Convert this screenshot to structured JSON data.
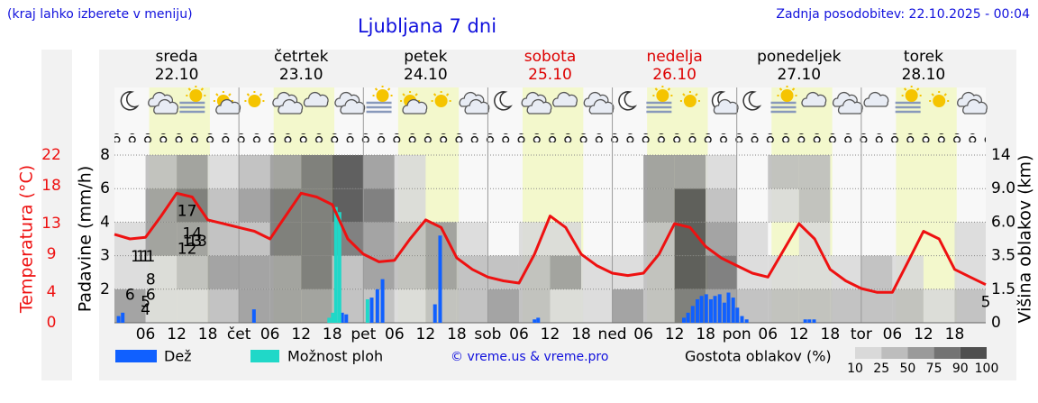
{
  "chart_data": {
    "type": "meteogram",
    "title": "Ljubljana 7 dni",
    "note": "(kraj lahko izberete v meniju)",
    "updated": "Zadnja posodobitev: 22.10.2025 - 00:04",
    "credit": "© vreme.us & vreme.pro",
    "days": [
      {
        "name": "sreda",
        "date": "22.10",
        "color": "#000000"
      },
      {
        "name": "četrtek",
        "date": "23.10",
        "color": "#000000"
      },
      {
        "name": "petek",
        "date": "24.10",
        "color": "#000000"
      },
      {
        "name": "sobota",
        "date": "25.10",
        "color": "#dd0000"
      },
      {
        "name": "nedelja",
        "date": "26.10",
        "color": "#dd0000"
      },
      {
        "name": "ponedeljek",
        "date": "27.10",
        "color": "#000000"
      },
      {
        "name": "torek",
        "date": "28.10",
        "color": "#000000"
      }
    ],
    "daylight_hours": [
      6.7,
      18.4
    ],
    "xlim": [
      0,
      168
    ],
    "xticks": [
      {
        "value": 6,
        "label": "06"
      },
      {
        "value": 12,
        "label": "12"
      },
      {
        "value": 18,
        "label": "18"
      },
      {
        "value": 24,
        "label": "čet"
      },
      {
        "value": 30,
        "label": "06"
      },
      {
        "value": 36,
        "label": "12"
      },
      {
        "value": 42,
        "label": "18"
      },
      {
        "value": 48,
        "label": "pet"
      },
      {
        "value": 54,
        "label": "06"
      },
      {
        "value": 60,
        "label": "12"
      },
      {
        "value": 66,
        "label": "18"
      },
      {
        "value": 72,
        "label": "sob"
      },
      {
        "value": 78,
        "label": "06"
      },
      {
        "value": 84,
        "label": "12"
      },
      {
        "value": 90,
        "label": "18"
      },
      {
        "value": 96,
        "label": "ned"
      },
      {
        "value": 102,
        "label": "06"
      },
      {
        "value": 108,
        "label": "12"
      },
      {
        "value": 114,
        "label": "18"
      },
      {
        "value": 120,
        "label": "pon"
      },
      {
        "value": 126,
        "label": "06"
      },
      {
        "value": 132,
        "label": "12"
      },
      {
        "value": 138,
        "label": "18"
      },
      {
        "value": 144,
        "label": "tor"
      },
      {
        "value": 150,
        "label": "06"
      },
      {
        "value": 156,
        "label": "12"
      },
      {
        "value": 162,
        "label": "18"
      }
    ],
    "temperature": {
      "ylabel": "Temperatura (°C)",
      "color": "#ee1111",
      "ylim": [
        0,
        22
      ],
      "yticks": [
        0,
        4,
        9,
        13,
        18,
        22
      ],
      "x": [
        0,
        3,
        6,
        9,
        12,
        15,
        18,
        21,
        24,
        27,
        30,
        33,
        36,
        39,
        42,
        45,
        48,
        51,
        54,
        57,
        60,
        63,
        66,
        69,
        72,
        75,
        78,
        81,
        84,
        87,
        90,
        93,
        96,
        99,
        102,
        105,
        108,
        111,
        114,
        117,
        120,
        123,
        126,
        129,
        132,
        135,
        138,
        141,
        144,
        147,
        150,
        153,
        156,
        159,
        162,
        165,
        168
      ],
      "values": [
        11.6,
        11,
        11.2,
        14,
        17,
        16.5,
        13.5,
        13,
        12.5,
        12,
        11,
        14,
        17,
        16.5,
        15.5,
        11,
        9,
        8,
        8.2,
        11,
        13.5,
        12.5,
        8.5,
        7,
        6,
        5.5,
        5.2,
        9,
        14,
        12.5,
        9,
        7.5,
        6.5,
        6.2,
        6.5,
        9,
        13,
        12.5,
        10,
        8.5,
        7.5,
        6.5,
        6,
        9.5,
        13,
        11,
        7,
        5.5,
        4.5,
        4,
        4,
        8,
        12,
        11,
        7,
        6,
        5
      ],
      "labels": {
        "x": [
          6,
          14,
          5,
          14,
          7,
          15,
          6,
          15,
          3,
          15,
          7,
          16,
          6,
          14,
          168
        ],
        "values": [
          11,
          17,
          11,
          17,
          8,
          13,
          5,
          14,
          6,
          13,
          6,
          13,
          4,
          12,
          5
        ]
      }
    },
    "precipitation": {
      "ylabel": "Padavine (mm/h)",
      "ylim": [
        0,
        8
      ],
      "yticks": [
        2,
        3,
        4,
        6,
        8
      ],
      "grid": true,
      "series": [
        {
          "name": "Dež",
          "color": "#1060ff",
          "x": [
            0.8,
            1.6,
            26.9,
            43.9,
            44.7,
            49.6,
            50.7,
            51.7,
            61.8,
            62.8,
            81,
            81.7,
            109.8,
            110.6,
            111.5,
            112.4,
            113.2,
            114.1,
            115,
            115.8,
            116.7,
            117.6,
            118.4,
            119.3,
            120.1,
            121,
            121.9,
            133.2,
            134,
            134.9
          ],
          "values": [
            0.4,
            0.6,
            0.8,
            0.6,
            0.5,
            1.5,
            2,
            2.3,
            1.1,
            3.6,
            0.2,
            0.3,
            0.3,
            0.6,
            1,
            1.4,
            1.6,
            1.7,
            1.4,
            1.6,
            1.7,
            1.2,
            1.8,
            1.5,
            0.9,
            0.4,
            0.2,
            0.2,
            0.2,
            0.2
          ]
        },
        {
          "name": "Možnost ploh",
          "color": "#20d8c8",
          "x": [
            41.4,
            42.1,
            42.7,
            43.4,
            48.8
          ],
          "values": [
            0.3,
            0.6,
            4.9,
            4.6,
            1.4
          ]
        }
      ]
    },
    "clouds": {
      "ylabel": "Višina oblakov (km)",
      "y2lim": [
        0,
        14
      ],
      "y2ticks": [
        0,
        1.5,
        3.5,
        {
          "value": 6,
          "label": "6.0"
        },
        {
          "value": 9,
          "label": "9.0"
        },
        14
      ],
      "legend_title": "Gostota oblakov (%)",
      "legend_ticks": [
        10,
        25,
        50,
        75,
        90,
        100
      ],
      "colors": [
        "#d9d9d9",
        "#bdbdbd",
        "#9a9a9a",
        "#737373",
        "#4f4f4f"
      ],
      "hours": [
        0,
        6,
        12,
        18,
        24,
        30,
        36,
        42,
        48,
        54,
        60,
        66,
        72,
        78,
        84,
        90,
        96,
        102,
        108,
        114,
        120,
        126,
        132,
        138,
        144,
        150,
        156,
        162
      ],
      "values": [
        [
          60,
          20,
          10,
          0,
          0
        ],
        [
          10,
          10,
          60,
          60,
          30
        ],
        [
          20,
          30,
          50,
          75,
          50
        ],
        [
          30,
          50,
          30,
          30,
          20
        ],
        [
          60,
          50,
          40,
          50,
          40
        ],
        [
          50,
          60,
          75,
          75,
          50
        ],
        [
          60,
          75,
          75,
          75,
          75
        ],
        [
          40,
          30,
          75,
          90,
          90
        ],
        [
          30,
          50,
          60,
          75,
          60
        ],
        [
          20,
          30,
          30,
          20,
          10
        ],
        [
          30,
          60,
          50,
          0,
          0
        ],
        [
          40,
          40,
          10,
          0,
          0
        ],
        [
          50,
          30,
          0,
          0,
          0
        ],
        [
          30,
          30,
          20,
          0,
          0
        ],
        [
          10,
          50,
          20,
          0,
          0
        ],
        [
          20,
          20,
          0,
          0,
          0
        ],
        [
          60,
          20,
          0,
          0,
          0
        ],
        [
          40,
          30,
          30,
          50,
          60
        ],
        [
          75,
          90,
          90,
          90,
          60
        ],
        [
          60,
          75,
          50,
          30,
          20
        ],
        [
          30,
          20,
          10,
          0,
          0
        ],
        [
          30,
          20,
          0,
          10,
          30
        ],
        [
          30,
          10,
          20,
          40,
          30
        ],
        [
          30,
          10,
          0,
          0,
          0
        ],
        [
          40,
          30,
          0,
          0,
          0
        ],
        [
          30,
          10,
          0,
          0,
          0
        ],
        [
          20,
          0,
          0,
          0,
          0
        ],
        [
          40,
          20,
          10,
          0,
          0
        ]
      ]
    }
  }
}
